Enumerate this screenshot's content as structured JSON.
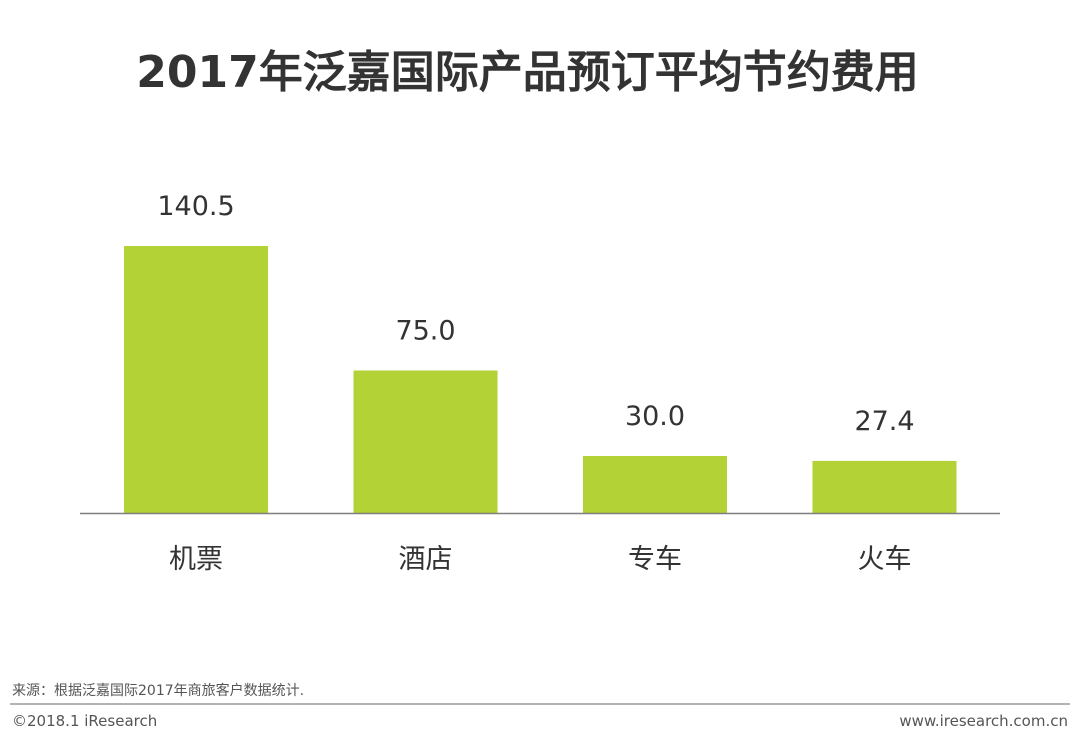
{
  "chart_data": {
    "type": "bar",
    "title": "2017年泛嘉国际产品预订平均节约费用",
    "categories": [
      "机票",
      "酒店",
      "专车",
      "火车"
    ],
    "values": [
      140.5,
      75.0,
      30.0,
      27.4
    ],
    "value_labels": [
      "140.5",
      "75.0",
      "30.0",
      "27.4"
    ],
    "xlabel": "",
    "ylabel": "",
    "ylim": [
      0,
      150
    ],
    "bar_color": "#b2d235",
    "axis_color": "#7f7f7f",
    "grid": false,
    "legend": "none"
  },
  "footer": {
    "source": "来源：根据泛嘉国际2017年商旅客户数据统计.",
    "copyright": "©2018.1 iResearch",
    "website": "www.iresearch.com.cn"
  }
}
